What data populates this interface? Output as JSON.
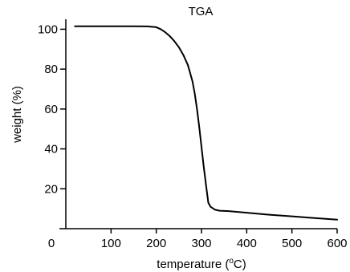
{
  "chart_data": {
    "type": "line",
    "title": "TGA",
    "xlabel": {
      "prefix": "temperature (",
      "superscript": "o",
      "suffix": "C)"
    },
    "ylabel": "weight (%)",
    "xlim": [
      0,
      600
    ],
    "ylim": [
      0,
      105
    ],
    "x_ticks": [
      100,
      200,
      300,
      400,
      500,
      600
    ],
    "y_ticks": [
      20,
      40,
      60,
      80,
      100
    ],
    "origin_label": "0",
    "grid": false,
    "legend": "none",
    "line_color": "#000000",
    "series": [
      {
        "x": [
          20,
          100,
          150,
          180,
          200,
          210,
          220,
          230,
          240,
          250,
          260,
          270,
          280,
          285,
          290,
          295,
          300,
          305,
          310,
          315,
          320,
          330,
          340,
          360,
          400,
          450,
          500,
          550,
          600
        ],
        "y": [
          101.5,
          101.5,
          101.5,
          101.4,
          101,
          100,
          98.5,
          96.5,
          94,
          91,
          87,
          82,
          74,
          68,
          60,
          51,
          41,
          31,
          22,
          13,
          11,
          9.5,
          9,
          8.8,
          8,
          7,
          6.2,
          5.3,
          4.5
        ]
      }
    ]
  }
}
